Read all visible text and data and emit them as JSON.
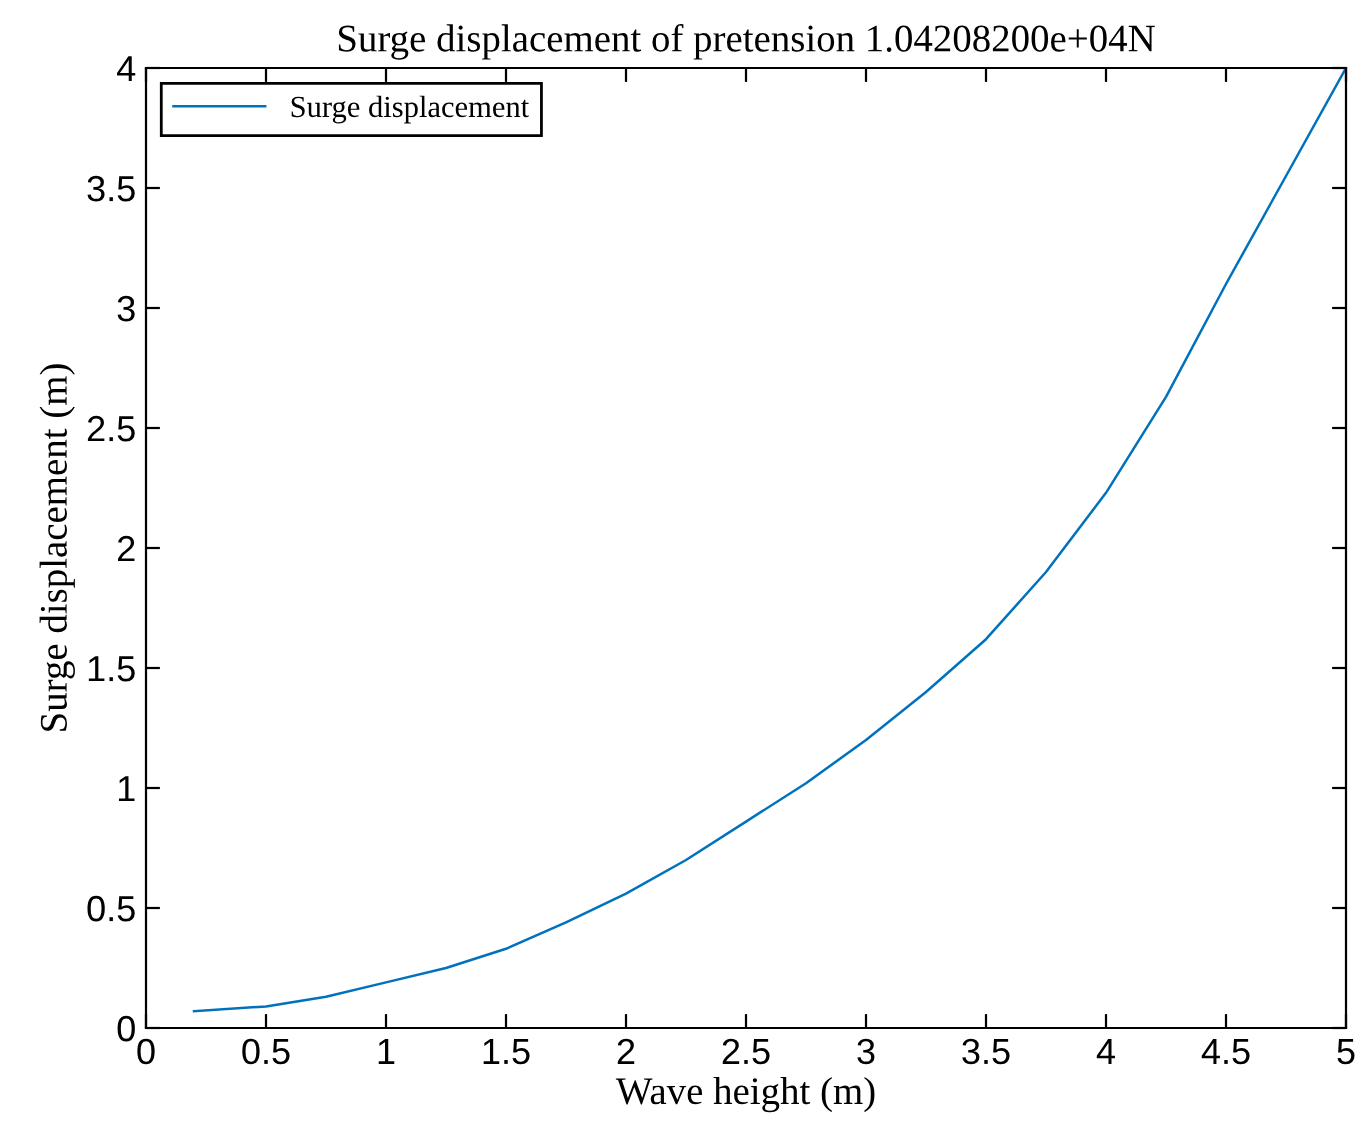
{
  "chart_data": {
    "type": "line",
    "title": "Surge displacement of pretension 1.04208200e+04N",
    "xlabel": "Wave height (m)",
    "ylabel": "Surge displacement (m)",
    "x": [
      0.2,
      0.5,
      0.75,
      1,
      1.25,
      1.5,
      1.75,
      2,
      2.25,
      2.5,
      2.75,
      3,
      3.25,
      3.5,
      3.75,
      4,
      4.25,
      4.5,
      4.75,
      5
    ],
    "series": [
      {
        "name": "Surge displacement",
        "color": "#0072bd",
        "values": [
          0.07,
          0.09,
          0.13,
          0.19,
          0.25,
          0.33,
          0.44,
          0.56,
          0.7,
          0.86,
          1.02,
          1.2,
          1.4,
          1.62,
          1.9,
          2.23,
          2.63,
          3.1,
          3.55,
          4.0
        ]
      }
    ],
    "xlim": [
      0,
      5
    ],
    "ylim": [
      0,
      4
    ],
    "xticks": [
      0,
      0.5,
      1,
      1.5,
      2,
      2.5,
      3,
      3.5,
      4,
      4.5,
      5
    ],
    "yticks": [
      0,
      0.5,
      1,
      1.5,
      2,
      2.5,
      3,
      3.5,
      4
    ],
    "grid": false,
    "legend": "top left",
    "marker": "none",
    "line_style": "solid"
  }
}
